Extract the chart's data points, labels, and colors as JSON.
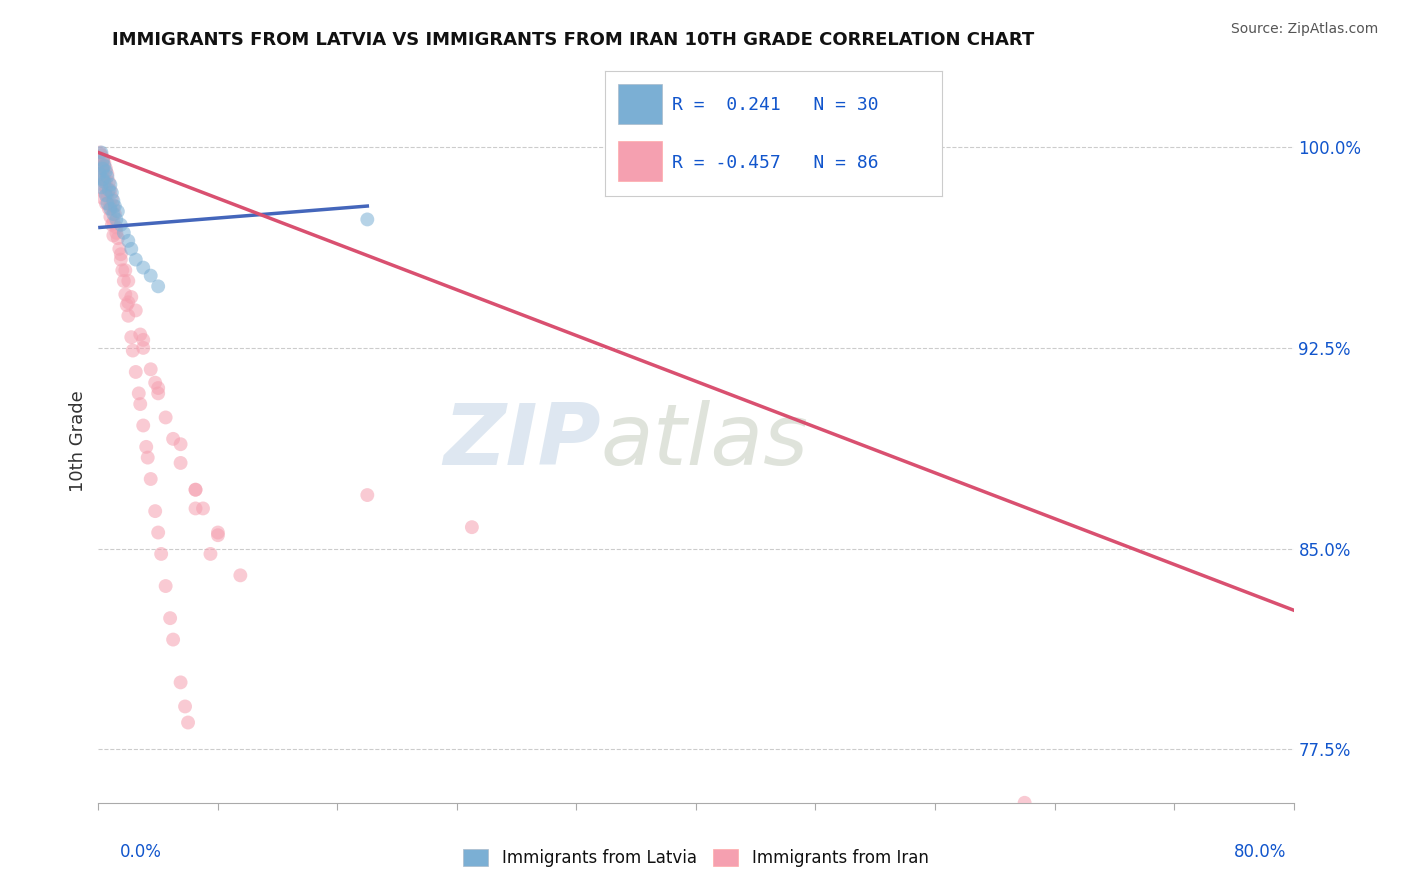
{
  "title": "IMMIGRANTS FROM LATVIA VS IMMIGRANTS FROM IRAN 10TH GRADE CORRELATION CHART",
  "source": "Source: ZipAtlas.com",
  "ylabel": "10th Grade",
  "ytick_values": [
    0.775,
    0.85,
    0.925,
    1.0
  ],
  "ytick_labels": [
    "77.5%",
    "85.0%",
    "92.5%",
    "100.0%"
  ],
  "xmin": 0.0,
  "xmax": 0.8,
  "ymin": 0.755,
  "ymax": 1.025,
  "legend_label_latvia": "Immigrants from Latvia",
  "legend_label_iran": "Immigrants from Iran",
  "color_latvia": "#7BAFD4",
  "color_iran": "#F5A0B0",
  "color_line_latvia": "#4466BB",
  "color_line_iran": "#D95070",
  "color_title": "#111111",
  "color_legend_text": "#1155CC",
  "color_source": "#555555",
  "watermark_zip": "ZIP",
  "watermark_atlas": "atlas",
  "watermark_color_zip": "#C8D8E8",
  "watermark_color_atlas": "#C0C8B8",
  "background": "#FFFFFF",
  "grid_color": "#CCCCCC",
  "scatter_alpha": 0.55,
  "scatter_size": 100,
  "latvia_x": [
    0.001,
    0.002,
    0.002,
    0.003,
    0.003,
    0.003,
    0.004,
    0.004,
    0.005,
    0.005,
    0.006,
    0.006,
    0.007,
    0.008,
    0.008,
    0.009,
    0.01,
    0.01,
    0.011,
    0.012,
    0.013,
    0.015,
    0.017,
    0.02,
    0.022,
    0.025,
    0.03,
    0.035,
    0.04,
    0.18
  ],
  "latvia_y": [
    0.99,
    0.998,
    0.985,
    0.995,
    0.992,
    0.988,
    0.993,
    0.987,
    0.991,
    0.982,
    0.989,
    0.979,
    0.984,
    0.986,
    0.977,
    0.983,
    0.98,
    0.975,
    0.978,
    0.973,
    0.976,
    0.971,
    0.968,
    0.965,
    0.962,
    0.958,
    0.955,
    0.952,
    0.948,
    0.973
  ],
  "iran_x": [
    0.001,
    0.001,
    0.002,
    0.002,
    0.002,
    0.003,
    0.003,
    0.003,
    0.003,
    0.004,
    0.004,
    0.004,
    0.005,
    0.005,
    0.005,
    0.006,
    0.006,
    0.007,
    0.007,
    0.008,
    0.008,
    0.009,
    0.009,
    0.01,
    0.01,
    0.011,
    0.012,
    0.013,
    0.014,
    0.015,
    0.016,
    0.017,
    0.018,
    0.019,
    0.02,
    0.022,
    0.023,
    0.025,
    0.027,
    0.028,
    0.03,
    0.032,
    0.033,
    0.035,
    0.038,
    0.04,
    0.042,
    0.045,
    0.048,
    0.05,
    0.055,
    0.058,
    0.06,
    0.012,
    0.018,
    0.022,
    0.028,
    0.035,
    0.04,
    0.05,
    0.065,
    0.07,
    0.08,
    0.003,
    0.005,
    0.008,
    0.01,
    0.015,
    0.02,
    0.025,
    0.03,
    0.038,
    0.045,
    0.055,
    0.065,
    0.075,
    0.02,
    0.03,
    0.04,
    0.055,
    0.065,
    0.08,
    0.095,
    0.62,
    0.18,
    0.25
  ],
  "iran_y": [
    0.998,
    0.994,
    0.997,
    0.993,
    0.989,
    0.996,
    0.991,
    0.986,
    0.981,
    0.994,
    0.988,
    0.983,
    0.992,
    0.985,
    0.979,
    0.99,
    0.982,
    0.987,
    0.977,
    0.984,
    0.974,
    0.981,
    0.971,
    0.978,
    0.967,
    0.975,
    0.97,
    0.966,
    0.962,
    0.958,
    0.954,
    0.95,
    0.945,
    0.941,
    0.937,
    0.929,
    0.924,
    0.916,
    0.908,
    0.904,
    0.896,
    0.888,
    0.884,
    0.876,
    0.864,
    0.856,
    0.848,
    0.836,
    0.824,
    0.816,
    0.8,
    0.791,
    0.785,
    0.968,
    0.954,
    0.944,
    0.93,
    0.917,
    0.908,
    0.891,
    0.872,
    0.865,
    0.855,
    0.995,
    0.987,
    0.978,
    0.972,
    0.96,
    0.95,
    0.939,
    0.928,
    0.912,
    0.899,
    0.882,
    0.865,
    0.848,
    0.942,
    0.925,
    0.91,
    0.889,
    0.872,
    0.856,
    0.84,
    0.755,
    0.87,
    0.858
  ],
  "iran_line_x0": 0.0,
  "iran_line_x1": 0.8,
  "iran_line_y0": 0.998,
  "iran_line_y1": 0.827,
  "latvia_line_x0": 0.001,
  "latvia_line_x1": 0.18,
  "latvia_line_y0": 0.97,
  "latvia_line_y1": 0.978
}
